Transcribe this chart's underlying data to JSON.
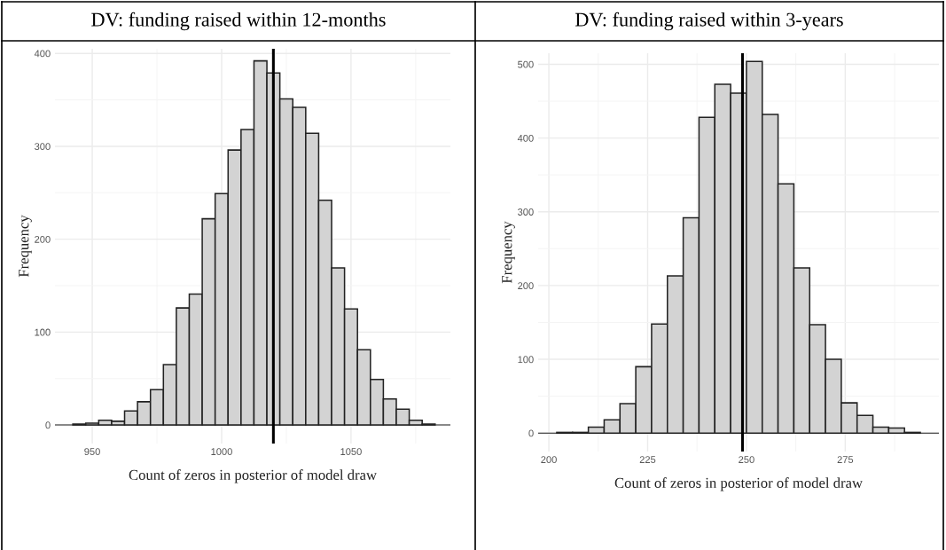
{
  "chart_data": [
    {
      "type": "histogram",
      "title": "DV: funding raised within 12-months",
      "xlabel": "Count of zeros in posterior of model draw",
      "ylabel": "Frequency",
      "color": "#d3d3d3",
      "bins": [
        942.5,
        947.5,
        952.5,
        957.5,
        962.5,
        967.5,
        972.5,
        977.5,
        982.5,
        987.5,
        992.5,
        997.5,
        1002.5,
        1007.5,
        1012.5,
        1017.5,
        1022.5,
        1027.5,
        1032.5,
        1037.5,
        1042.5,
        1047.5,
        1052.5,
        1057.5,
        1062.5,
        1067.5,
        1072.5,
        1077.5,
        1082.5
      ],
      "values": [
        1,
        2,
        5,
        4,
        15,
        25,
        38,
        65,
        126,
        141,
        222,
        249,
        296,
        318,
        392,
        379,
        351,
        342,
        314,
        242,
        169,
        125,
        81,
        49,
        28,
        17,
        5,
        1
      ],
      "xlim": [
        935.6,
        1088.4
      ],
      "ylim": [
        -20,
        405
      ],
      "xticks": [
        950,
        1000,
        1050
      ],
      "yticks": [
        0,
        100,
        200,
        300,
        400
      ],
      "grid": true,
      "ref_lines": [
        {
          "axis": "x",
          "value": 1020,
          "color": "#000000"
        }
      ]
    },
    {
      "type": "histogram",
      "title": "DV: funding raised within 3-years",
      "xlabel": "Count of zeros in posterior of model draw",
      "ylabel": "Frequency",
      "color": "#d3d3d3",
      "bins": [
        202,
        206,
        210,
        214,
        218,
        222,
        226,
        230,
        234,
        238,
        242,
        246,
        250,
        254,
        258,
        262,
        266,
        270,
        274,
        278,
        282,
        286,
        290,
        294
      ],
      "values": [
        1,
        1,
        8,
        18,
        40,
        90,
        148,
        213,
        292,
        428,
        473,
        461,
        504,
        432,
        338,
        224,
        147,
        100,
        41,
        24,
        8,
        7,
        1
      ],
      "xlim": [
        197.3,
        298.7
      ],
      "ylim": [
        -25,
        515
      ],
      "xticks": [
        200,
        225,
        250,
        275
      ],
      "yticks": [
        0,
        100,
        200,
        300,
        400,
        500
      ],
      "grid": true,
      "ref_lines": [
        {
          "axis": "x",
          "value": 249,
          "color": "#000000"
        }
      ]
    }
  ]
}
